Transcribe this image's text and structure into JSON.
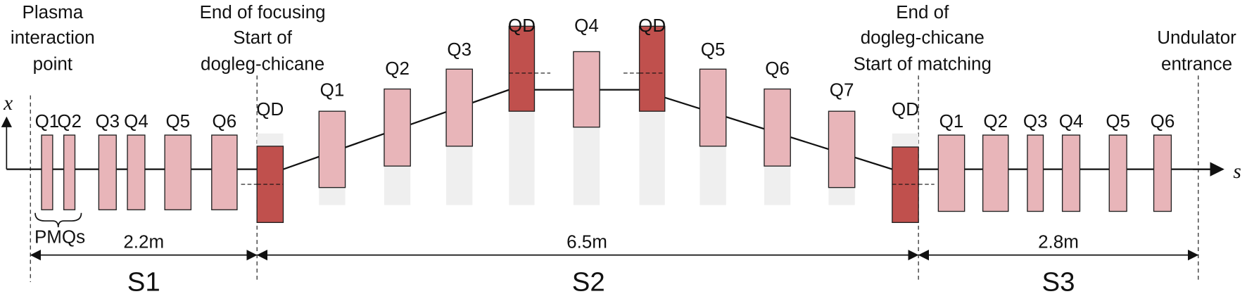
{
  "top_labels": [
    {
      "lines": [
        "Plasma",
        "interaction",
        "point"
      ]
    },
    {
      "lines": [
        "End of focusing",
        "Start of",
        "dogleg-chicane"
      ]
    },
    {
      "lines": [
        "End of",
        "dogleg-chicane",
        "Start of matching"
      ]
    },
    {
      "lines": [
        "Undulator",
        "entrance"
      ]
    }
  ],
  "axis": {
    "vertical": "x",
    "horizontal": "s"
  },
  "segments": [
    {
      "name": "S1",
      "length": "2.2m",
      "magnets": [
        "Q1",
        "Q2",
        "Q3",
        "Q4",
        "Q5",
        "Q6"
      ],
      "group_label": "PMQs"
    },
    {
      "name": "S2",
      "length": "6.5m",
      "magnets": [
        "QD",
        "Q1",
        "Q2",
        "Q3",
        "QD",
        "Q4",
        "QD",
        "Q5",
        "Q6",
        "Q7",
        "QD"
      ]
    },
    {
      "name": "S3",
      "length": "2.8m",
      "magnets": [
        "Q1",
        "Q2",
        "Q3",
        "Q4",
        "Q5",
        "Q6"
      ]
    }
  ]
}
